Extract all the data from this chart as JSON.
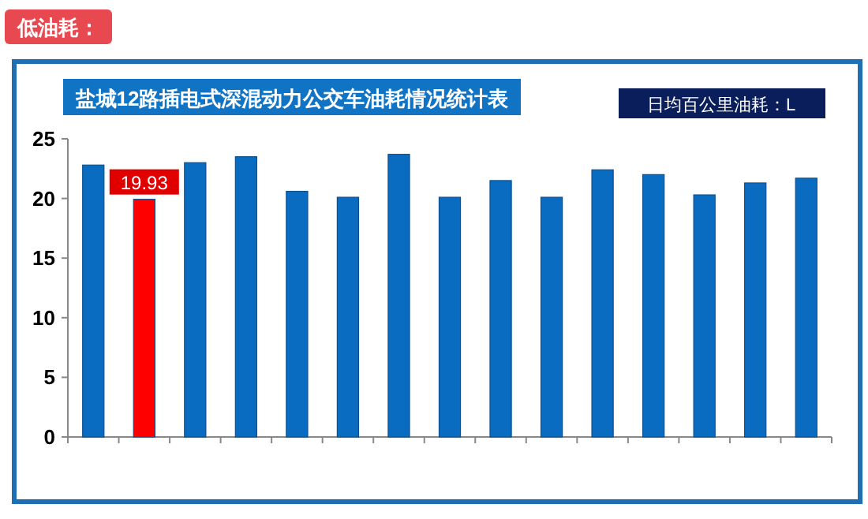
{
  "chart_data": {
    "type": "bar",
    "title": "盐城12路插电式深混动力公交车油耗情况统计表",
    "annotations": [
      "低油耗：",
      "日均百公里油耗：L"
    ],
    "categories": [
      null,
      null,
      null,
      null,
      null,
      null,
      null,
      null,
      null,
      null,
      null,
      null,
      null,
      null,
      null
    ],
    "values": [
      22.8,
      19.93,
      23.0,
      23.5,
      20.6,
      20.1,
      23.7,
      20.1,
      21.5,
      20.1,
      22.4,
      22.0,
      20.3,
      21.3,
      21.7
    ],
    "colors": [
      "#0a6cc0",
      "#ff0000",
      "#0a6cc0",
      "#0a6cc0",
      "#0a6cc0",
      "#0a6cc0",
      "#0a6cc0",
      "#0a6cc0",
      "#0a6cc0",
      "#0a6cc0",
      "#0a6cc0",
      "#0a6cc0",
      "#0a6cc0",
      "#0a6cc0",
      "#0a6cc0"
    ],
    "value_labels": [
      null,
      "19.93",
      null,
      null,
      null,
      null,
      null,
      null,
      null,
      null,
      null,
      null,
      null,
      null,
      null
    ],
    "ylim": [
      0,
      25
    ],
    "yticks": [
      0,
      5,
      10,
      15,
      20,
      25
    ],
    "grid": false
  }
}
